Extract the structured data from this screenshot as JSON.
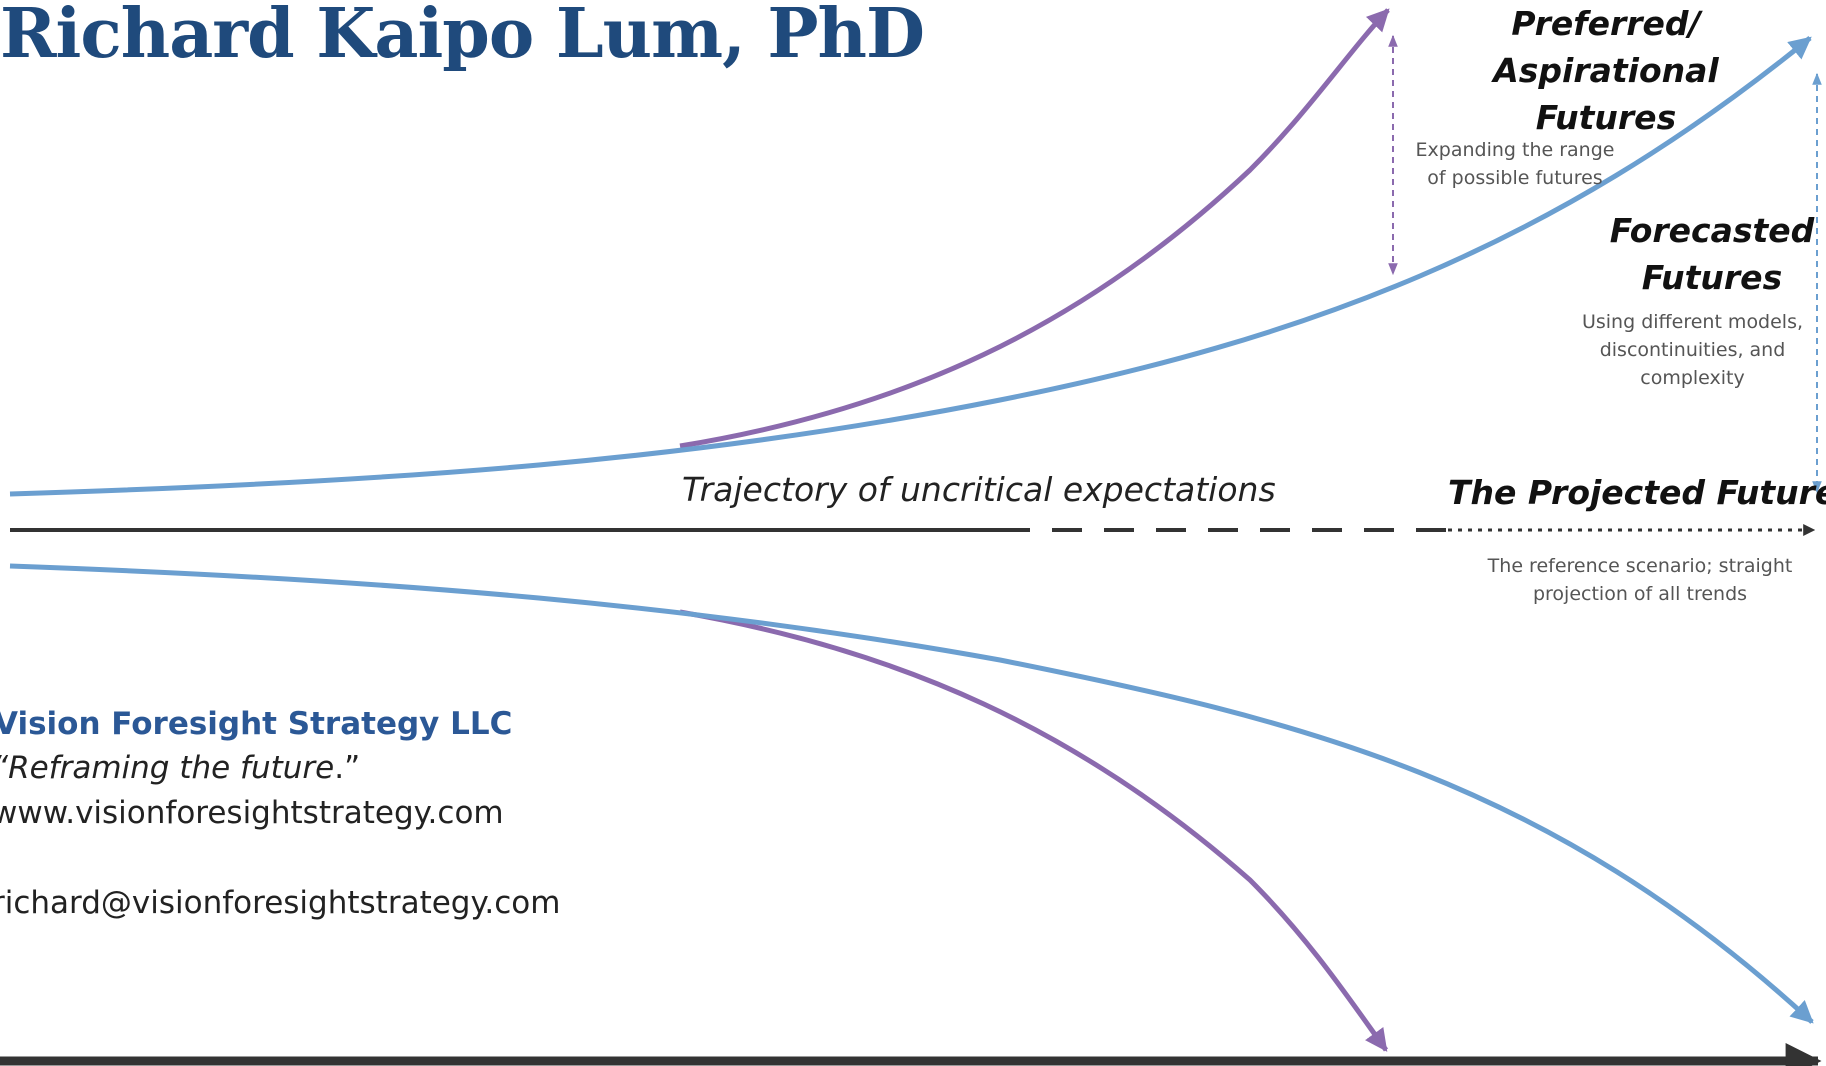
{
  "header": {
    "title": "Richard Kaipo Lum, PhD"
  },
  "company": {
    "name": "Vision Foresight Strategy LLC",
    "tagline_open": "“",
    "tagline": "Reframing the future",
    "tagline_close": ".”",
    "website": "www.visionforesightstrategy.com",
    "email": "richard@visionforesightstrategy.com"
  },
  "diagram": {
    "preferred": {
      "heading_line1": "Preferred/ Aspirational",
      "heading_line2": "Futures",
      "note_line1": "Expanding the range",
      "note_line2": "of possible futures"
    },
    "forecasted": {
      "heading_line1": "Forecasted",
      "heading_line2": "Futures",
      "note_line1": "Using different models,",
      "note_line2": "discontinuities, and",
      "note_line3": "complexity"
    },
    "trajectory_label": "Trajectory of uncritical expectations",
    "projected": {
      "heading": "The Projected Future",
      "note_line1": "The reference scenario; straight",
      "note_line2": "projection of all trends"
    }
  },
  "colors": {
    "blue_curve": "#6b9fd0",
    "purple_curve": "#8b6aae",
    "axis": "#333333",
    "title": "#1f4a7c",
    "company": "#2b5896"
  }
}
